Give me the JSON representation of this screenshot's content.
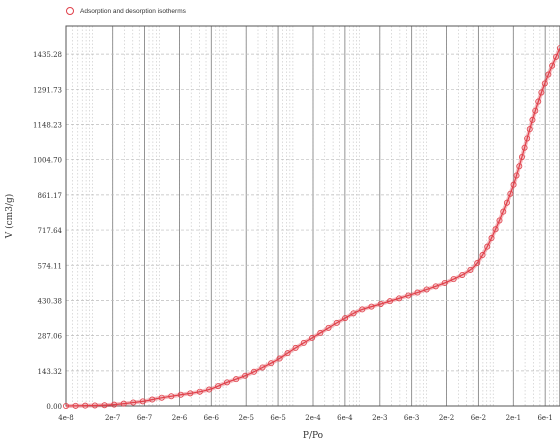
{
  "chart_data": {
    "type": "line",
    "legend": [
      {
        "label": "Adsorption and desorption isotherms",
        "marker": "circle",
        "color": "#e0404a"
      }
    ],
    "xlabel": "P/Po",
    "ylabel": "V (cm3/g)",
    "xscale": "log",
    "xlim": [
      4e-08,
      1
    ],
    "ylim": [
      0,
      1550
    ],
    "x_ticks": [
      {
        "value": 4e-08,
        "label": "4e-8"
      },
      {
        "value": 2e-07,
        "label": "2e-7"
      },
      {
        "value": 6e-07,
        "label": "6e-7"
      },
      {
        "value": 2e-06,
        "label": "2e-6"
      },
      {
        "value": 6e-06,
        "label": "6e-6"
      },
      {
        "value": 2e-05,
        "label": "2e-5"
      },
      {
        "value": 6e-05,
        "label": "6e-5"
      },
      {
        "value": 0.0002,
        "label": "2e-4"
      },
      {
        "value": 0.0006,
        "label": "6e-4"
      },
      {
        "value": 0.002,
        "label": "2e-3"
      },
      {
        "value": 0.006,
        "label": "6e-3"
      },
      {
        "value": 0.02,
        "label": "2e-2"
      },
      {
        "value": 0.06,
        "label": "6e-2"
      },
      {
        "value": 0.2,
        "label": "2e-1"
      },
      {
        "value": 0.6,
        "label": "6e-1"
      }
    ],
    "y_ticks": [
      {
        "value": 0,
        "label": "0.00"
      },
      {
        "value": 143.32,
        "label": "143.32"
      },
      {
        "value": 287.06,
        "label": "287.06"
      },
      {
        "value": 430.38,
        "label": "430.38"
      },
      {
        "value": 574.11,
        "label": "574.11"
      },
      {
        "value": 717.64,
        "label": "717.64"
      },
      {
        "value": 861.17,
        "label": "861.17"
      },
      {
        "value": 1004.7,
        "label": "1004.70"
      },
      {
        "value": 1148.23,
        "label": "1148.23"
      },
      {
        "value": 1291.73,
        "label": "1291.73"
      },
      {
        "value": 1435.28,
        "label": "1435.28"
      }
    ],
    "grid": true,
    "series": [
      {
        "name": "Adsorption and desorption isotherms",
        "color": "#e0404a",
        "x": [
          4e-08,
          1e-07,
          2e-07,
          4e-07,
          6e-07,
          1e-06,
          2e-06,
          4e-06,
          6e-06,
          1e-05,
          2e-05,
          4e-05,
          6e-05,
          0.0001,
          0.0002,
          0.0004,
          0.0006,
          0.001,
          0.002,
          0.004,
          0.006,
          0.01,
          0.02,
          0.04,
          0.06,
          0.1,
          0.2,
          0.4,
          0.6,
          1
        ],
        "y": [
          0,
          2,
          5,
          14,
          20,
          32,
          45,
          58,
          70,
          95,
          125,
          165,
          190,
          230,
          280,
          330,
          358,
          390,
          415,
          440,
          455,
          475,
          505,
          545,
          590,
          700,
          900,
          1180,
          1320,
          1460
        ]
      }
    ]
  }
}
